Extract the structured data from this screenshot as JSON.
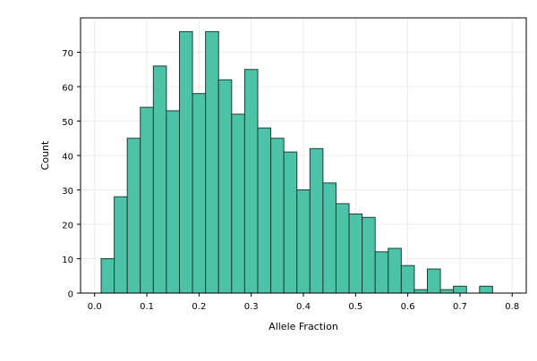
{
  "chart_data": {
    "type": "bar",
    "title": "",
    "xlabel": "Allele Fraction",
    "ylabel": "Count",
    "bin_width": 0.025,
    "bins": [
      {
        "x0": 0.0125,
        "x1": 0.0375,
        "count": 10
      },
      {
        "x0": 0.0375,
        "x1": 0.0625,
        "count": 28
      },
      {
        "x0": 0.0625,
        "x1": 0.0875,
        "count": 45
      },
      {
        "x0": 0.0875,
        "x1": 0.1125,
        "count": 54
      },
      {
        "x0": 0.1125,
        "x1": 0.1375,
        "count": 66
      },
      {
        "x0": 0.1375,
        "x1": 0.1625,
        "count": 53
      },
      {
        "x0": 0.1625,
        "x1": 0.1875,
        "count": 76
      },
      {
        "x0": 0.1875,
        "x1": 0.2125,
        "count": 58
      },
      {
        "x0": 0.2125,
        "x1": 0.2375,
        "count": 76
      },
      {
        "x0": 0.2375,
        "x1": 0.2625,
        "count": 62
      },
      {
        "x0": 0.2625,
        "x1": 0.2875,
        "count": 52
      },
      {
        "x0": 0.2875,
        "x1": 0.3125,
        "count": 65
      },
      {
        "x0": 0.3125,
        "x1": 0.3375,
        "count": 48
      },
      {
        "x0": 0.3375,
        "x1": 0.3625,
        "count": 45
      },
      {
        "x0": 0.3625,
        "x1": 0.3875,
        "count": 41
      },
      {
        "x0": 0.3875,
        "x1": 0.4125,
        "count": 30
      },
      {
        "x0": 0.4125,
        "x1": 0.4375,
        "count": 42
      },
      {
        "x0": 0.4375,
        "x1": 0.4625,
        "count": 32
      },
      {
        "x0": 0.4625,
        "x1": 0.4875,
        "count": 26
      },
      {
        "x0": 0.4875,
        "x1": 0.5125,
        "count": 23
      },
      {
        "x0": 0.5125,
        "x1": 0.5375,
        "count": 22
      },
      {
        "x0": 0.5375,
        "x1": 0.5625,
        "count": 12
      },
      {
        "x0": 0.5625,
        "x1": 0.5875,
        "count": 13
      },
      {
        "x0": 0.5875,
        "x1": 0.6125,
        "count": 8
      },
      {
        "x0": 0.6125,
        "x1": 0.6375,
        "count": 1
      },
      {
        "x0": 0.6375,
        "x1": 0.6625,
        "count": 7
      },
      {
        "x0": 0.6625,
        "x1": 0.6875,
        "count": 1
      },
      {
        "x0": 0.6875,
        "x1": 0.7125,
        "count": 2
      },
      {
        "x0": 0.7125,
        "x1": 0.7375,
        "count": 0
      },
      {
        "x0": 0.7375,
        "x1": 0.7625,
        "count": 2
      }
    ],
    "xlim": [
      -0.027,
      0.827
    ],
    "ylim": [
      0,
      80
    ],
    "xticks": [
      0.0,
      0.1,
      0.2,
      0.3,
      0.4,
      0.5,
      0.6,
      0.7,
      0.8
    ],
    "xtick_labels": [
      "0.0",
      "0.1",
      "0.2",
      "0.3",
      "0.4",
      "0.5",
      "0.6",
      "0.7",
      "0.8"
    ],
    "yticks": [
      0,
      10,
      20,
      30,
      40,
      50,
      60,
      70
    ],
    "ytick_labels": [
      "0",
      "10",
      "20",
      "30",
      "40",
      "50",
      "60",
      "70"
    ],
    "grid": true,
    "legend": "none",
    "colors": {
      "bar_fill": "#4cc2a6",
      "bar_edge": "#1e3d36",
      "grid": "#e6e6e6",
      "axis": "#000000"
    }
  }
}
